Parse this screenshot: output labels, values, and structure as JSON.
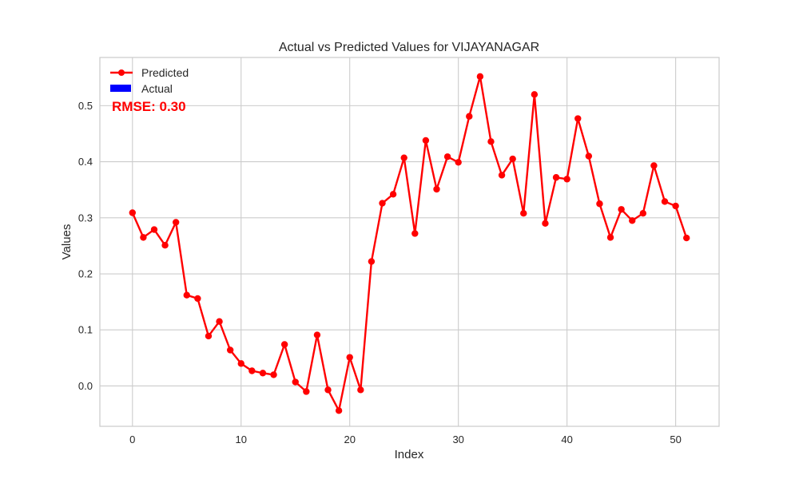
{
  "chart_data": {
    "type": "line",
    "title": "Actual vs Predicted Values for VIJAYANAGAR",
    "xlabel": "Index",
    "ylabel": "Values",
    "xlim": [
      -3,
      54
    ],
    "ylim": [
      -0.072,
      0.586
    ],
    "x_ticks": [
      0,
      10,
      20,
      30,
      40,
      50
    ],
    "y_ticks": [
      0.0,
      0.1,
      0.2,
      0.3,
      0.4,
      0.5
    ],
    "x_tick_labels": [
      "0",
      "10",
      "20",
      "30",
      "40",
      "50"
    ],
    "y_tick_labels": [
      "0.0",
      "0.1",
      "0.2",
      "0.3",
      "0.4",
      "0.5"
    ],
    "grid": true,
    "legend_position": "top-left",
    "annotation": {
      "text": "RMSE: 0.30",
      "color": "#ff0000"
    },
    "series": [
      {
        "name": "Predicted",
        "color": "#ff0000",
        "marker": "circle",
        "x": [
          0,
          1,
          2,
          3,
          4,
          5,
          6,
          7,
          8,
          9,
          10,
          11,
          12,
          13,
          14,
          15,
          16,
          17,
          18,
          19,
          20,
          21,
          22,
          23,
          24,
          25,
          26,
          27,
          28,
          29,
          30,
          31,
          32,
          33,
          34,
          35,
          36,
          37,
          38,
          39,
          40,
          41,
          42,
          43,
          44,
          45,
          46,
          47,
          48,
          49,
          50,
          51
        ],
        "y": [
          0.309,
          0.265,
          0.279,
          0.251,
          0.292,
          0.162,
          0.156,
          0.089,
          0.115,
          0.064,
          0.04,
          0.027,
          0.023,
          0.02,
          0.074,
          0.007,
          -0.01,
          0.091,
          -0.007,
          -0.044,
          0.051,
          -0.007,
          0.222,
          0.326,
          0.342,
          0.407,
          0.272,
          0.438,
          0.351,
          0.409,
          0.399,
          0.481,
          0.552,
          0.436,
          0.376,
          0.405,
          0.308,
          0.52,
          0.29,
          0.372,
          0.369,
          0.477,
          0.41,
          0.325,
          0.265,
          0.315,
          0.295,
          0.308,
          0.393,
          0.329,
          0.321,
          0.264
        ]
      },
      {
        "name": "Actual",
        "color": "#0000ff",
        "marker": "patch",
        "x": [],
        "y": []
      }
    ]
  }
}
